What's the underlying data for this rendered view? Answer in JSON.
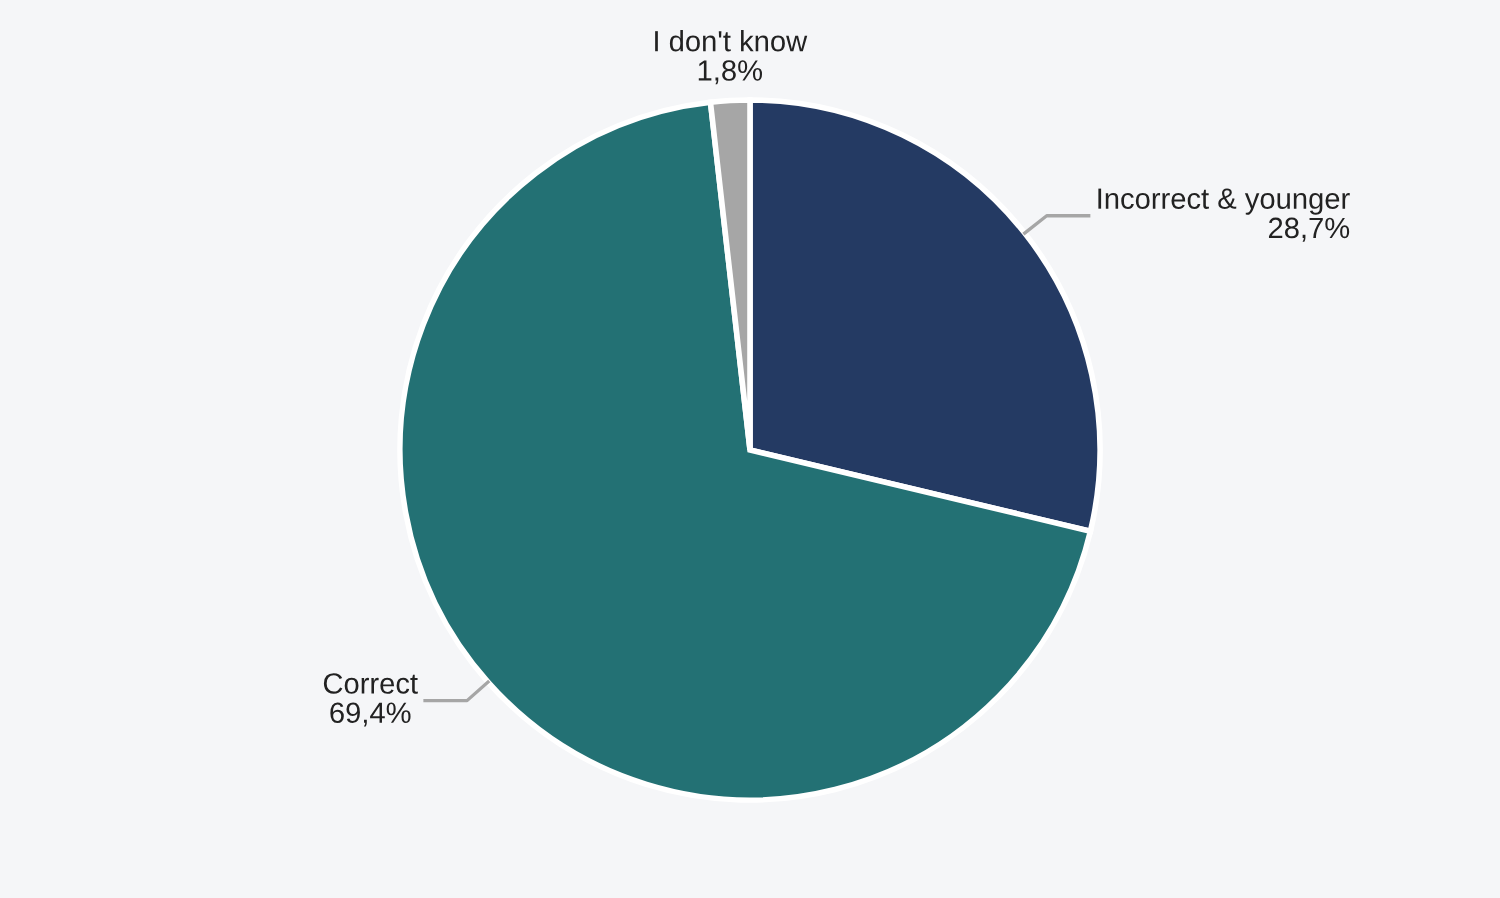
{
  "chart_data": {
    "type": "pie",
    "categories": [
      "Incorrect & younger",
      "Correct",
      "I don't know"
    ],
    "values": [
      28.7,
      69.4,
      1.8
    ],
    "value_labels": [
      "28,7%",
      "69,4%",
      "1,8%"
    ],
    "colors": [
      "#243a63",
      "#237174",
      "#a6a6a6"
    ],
    "legend": false
  }
}
